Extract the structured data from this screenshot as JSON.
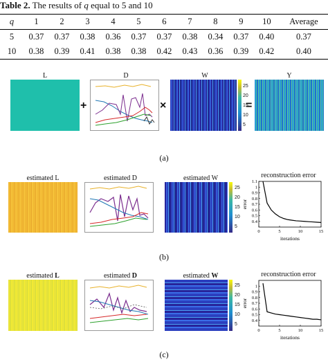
{
  "table": {
    "caption_label": "Table 2.",
    "caption_text": "The results of",
    "caption_var": "q",
    "caption_tail": "equal to 5 and 10",
    "header": [
      "q",
      "1",
      "2",
      "3",
      "4",
      "5",
      "6",
      "7",
      "8",
      "9",
      "10",
      "Average"
    ],
    "rows": [
      [
        "5",
        "0.37",
        "0.37",
        "0.38",
        "0.36",
        "0.37",
        "0.37",
        "0.38",
        "0.34",
        "0.37",
        "0.40",
        "0.37"
      ],
      [
        "10",
        "0.38",
        "0.39",
        "0.41",
        "0.38",
        "0.38",
        "0.42",
        "0.43",
        "0.36",
        "0.39",
        "0.42",
        "0.40"
      ]
    ]
  },
  "figure": {
    "row_a": {
      "labels": {
        "L": "L",
        "D": "D",
        "W": "W",
        "Y": "Y"
      },
      "ops": {
        "plus": "+",
        "times": "×",
        "equals": "="
      },
      "colorbar_ticks": [
        "25",
        "20",
        "15",
        "10",
        "5"
      ],
      "caption": "(a)"
    },
    "row_b": {
      "labels": {
        "L": "estimated  L",
        "D": "estimated  D",
        "W": "estimated  W",
        "err": "reconstruction error"
      },
      "colorbar_ticks": [
        "25",
        "20",
        "15",
        "10",
        "5"
      ],
      "caption": "(b)"
    },
    "row_c": {
      "labels": {
        "L_pre": "estimated",
        "L_bold": "L",
        "D_pre": "estimated",
        "D_bold": "D",
        "W_pre": "estimated",
        "W_bold": "W",
        "err": "reconstruction error"
      },
      "colorbar_ticks": [
        "25",
        "20",
        "15",
        "10",
        "5"
      ],
      "caption": "(c)"
    }
  },
  "chart_data": [
    {
      "type": "line",
      "title": "reconstruction error",
      "xlabel": "iterations",
      "ylabel": "error",
      "xlim": [
        0,
        15
      ],
      "ylim": [
        0.3,
        1.1
      ],
      "xticks": [
        "0",
        "5",
        "10",
        "15"
      ],
      "yticks": [
        "1.1",
        "1",
        "0.9",
        "0.8",
        "0.7",
        "0.6",
        "0.5",
        "0.4"
      ],
      "x": [
        1,
        2,
        3,
        4,
        5,
        6,
        7,
        8,
        9,
        10,
        11,
        12,
        13,
        14,
        15
      ],
      "y": [
        1.1,
        0.72,
        0.6,
        0.53,
        0.48,
        0.45,
        0.43,
        0.42,
        0.41,
        0.405,
        0.4,
        0.395,
        0.39,
        0.385,
        0.38
      ]
    },
    {
      "type": "line",
      "title": "reconstruction error",
      "xlabel": "iterations",
      "ylabel": "error",
      "xlim": [
        0,
        15
      ],
      "ylim": [
        0.3,
        1.1
      ],
      "xticks": [
        "0",
        "5",
        "10",
        "15"
      ],
      "yticks": [
        "1",
        "0.9",
        "0.8",
        "0.7",
        "0.6",
        "0.5",
        "0.4"
      ],
      "x": [
        1,
        2,
        3,
        4,
        5,
        6,
        7,
        8,
        9,
        10,
        11,
        12,
        13,
        14,
        15
      ],
      "y": [
        1.05,
        0.55,
        0.53,
        0.51,
        0.5,
        0.49,
        0.48,
        0.47,
        0.46,
        0.45,
        0.44,
        0.43,
        0.42,
        0.42,
        0.41
      ]
    }
  ]
}
